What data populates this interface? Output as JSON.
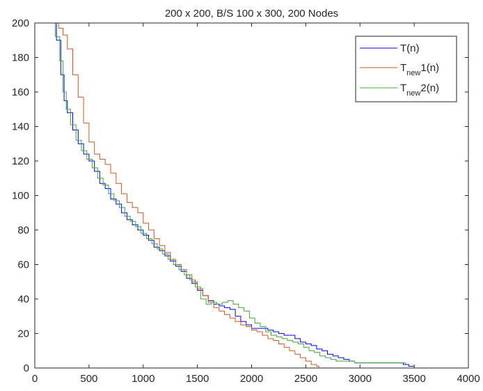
{
  "chart_data": {
    "type": "line",
    "title": "200 x 200, B/S 100 x 300, 200 Nodes",
    "xlabel": "",
    "ylabel": "",
    "xlim": [
      0,
      4000
    ],
    "ylim": [
      0,
      200
    ],
    "xticks": [
      0,
      500,
      1000,
      1500,
      2000,
      2500,
      3000,
      3500,
      4000
    ],
    "yticks": [
      0,
      20,
      40,
      60,
      80,
      100,
      120,
      140,
      160,
      180,
      200
    ],
    "grid": false,
    "legend_position": "top-right",
    "series": [
      {
        "name": "T(n)",
        "label_main": "T",
        "label_sub": "",
        "label_rest": "(n)",
        "color": "#0000ff",
        "points": [
          [
            0,
            200
          ],
          [
            160,
            200
          ],
          [
            200,
            190
          ],
          [
            240,
            170
          ],
          [
            270,
            155
          ],
          [
            300,
            148
          ],
          [
            350,
            138
          ],
          [
            400,
            130
          ],
          [
            450,
            124
          ],
          [
            500,
            120
          ],
          [
            550,
            114
          ],
          [
            600,
            107
          ],
          [
            650,
            104
          ],
          [
            700,
            98
          ],
          [
            750,
            95
          ],
          [
            800,
            90
          ],
          [
            850,
            86
          ],
          [
            900,
            83
          ],
          [
            950,
            80
          ],
          [
            1000,
            77
          ],
          [
            1050,
            74
          ],
          [
            1100,
            70
          ],
          [
            1150,
            68
          ],
          [
            1200,
            65
          ],
          [
            1250,
            62
          ],
          [
            1300,
            59
          ],
          [
            1350,
            56
          ],
          [
            1400,
            52
          ],
          [
            1450,
            49
          ],
          [
            1500,
            45
          ],
          [
            1550,
            42
          ],
          [
            1600,
            39
          ],
          [
            1650,
            37
          ],
          [
            1700,
            36
          ],
          [
            1750,
            35
          ],
          [
            1800,
            34
          ],
          [
            1850,
            30
          ],
          [
            1900,
            27
          ],
          [
            1950,
            25
          ],
          [
            2000,
            23
          ],
          [
            2050,
            23
          ],
          [
            2100,
            23
          ],
          [
            2150,
            22
          ],
          [
            2200,
            21
          ],
          [
            2250,
            20
          ],
          [
            2300,
            19
          ],
          [
            2350,
            19
          ],
          [
            2400,
            17
          ],
          [
            2450,
            15
          ],
          [
            2500,
            14
          ],
          [
            2550,
            13
          ],
          [
            2600,
            11
          ],
          [
            2650,
            10
          ],
          [
            2700,
            8
          ],
          [
            2750,
            7
          ],
          [
            2800,
            6
          ],
          [
            2850,
            5
          ],
          [
            2900,
            4
          ],
          [
            2950,
            3
          ],
          [
            3000,
            3
          ],
          [
            3100,
            3
          ],
          [
            3200,
            3
          ],
          [
            3300,
            3
          ],
          [
            3400,
            2
          ],
          [
            3450,
            1
          ],
          [
            3500,
            1
          ]
        ]
      },
      {
        "name": "Tnew1(n)",
        "label_main": "T",
        "label_sub": "new",
        "label_rest": "1(n)",
        "color": "#d95319",
        "points": [
          [
            0,
            200
          ],
          [
            170,
            200
          ],
          [
            220,
            197
          ],
          [
            260,
            193
          ],
          [
            300,
            185
          ],
          [
            350,
            170
          ],
          [
            400,
            157
          ],
          [
            450,
            142
          ],
          [
            500,
            131
          ],
          [
            550,
            124
          ],
          [
            600,
            121
          ],
          [
            650,
            118
          ],
          [
            700,
            113
          ],
          [
            750,
            107
          ],
          [
            800,
            101
          ],
          [
            850,
            96
          ],
          [
            900,
            93
          ],
          [
            950,
            90
          ],
          [
            1000,
            84
          ],
          [
            1050,
            80
          ],
          [
            1100,
            75
          ],
          [
            1150,
            71
          ],
          [
            1200,
            67
          ],
          [
            1250,
            63
          ],
          [
            1300,
            60
          ],
          [
            1350,
            57
          ],
          [
            1400,
            54
          ],
          [
            1450,
            50
          ],
          [
            1500,
            46
          ],
          [
            1550,
            42
          ],
          [
            1600,
            38
          ],
          [
            1650,
            35
          ],
          [
            1700,
            33
          ],
          [
            1750,
            31
          ],
          [
            1800,
            29
          ],
          [
            1850,
            27
          ],
          [
            1900,
            25
          ],
          [
            1950,
            24
          ],
          [
            2000,
            22
          ],
          [
            2050,
            21
          ],
          [
            2100,
            19
          ],
          [
            2150,
            17
          ],
          [
            2200,
            16
          ],
          [
            2250,
            14
          ],
          [
            2300,
            12
          ],
          [
            2350,
            10
          ],
          [
            2400,
            8
          ],
          [
            2450,
            6
          ],
          [
            2500,
            4
          ],
          [
            2550,
            2
          ],
          [
            2600,
            1
          ],
          [
            2620,
            0
          ]
        ]
      },
      {
        "name": "Tnew2(n)",
        "label_main": "T",
        "label_sub": "new",
        "label_rest": "2(n)",
        "color": "#3aa935",
        "points": [
          [
            0,
            200
          ],
          [
            150,
            200
          ],
          [
            190,
            192
          ],
          [
            230,
            178
          ],
          [
            260,
            160
          ],
          [
            290,
            150
          ],
          [
            330,
            141
          ],
          [
            380,
            132
          ],
          [
            430,
            126
          ],
          [
            480,
            121
          ],
          [
            530,
            116
          ],
          [
            580,
            110
          ],
          [
            630,
            106
          ],
          [
            680,
            101
          ],
          [
            730,
            97
          ],
          [
            780,
            93
          ],
          [
            830,
            88
          ],
          [
            880,
            85
          ],
          [
            930,
            82
          ],
          [
            980,
            78
          ],
          [
            1030,
            75
          ],
          [
            1080,
            72
          ],
          [
            1130,
            69
          ],
          [
            1180,
            66
          ],
          [
            1230,
            63
          ],
          [
            1280,
            60
          ],
          [
            1330,
            57
          ],
          [
            1380,
            54
          ],
          [
            1430,
            51
          ],
          [
            1480,
            47
          ],
          [
            1530,
            40
          ],
          [
            1580,
            37
          ],
          [
            1630,
            38
          ],
          [
            1680,
            37
          ],
          [
            1730,
            38
          ],
          [
            1780,
            39
          ],
          [
            1830,
            37
          ],
          [
            1880,
            35
          ],
          [
            1930,
            33
          ],
          [
            1980,
            29
          ],
          [
            2030,
            26
          ],
          [
            2080,
            24
          ],
          [
            2130,
            21
          ],
          [
            2180,
            19
          ],
          [
            2230,
            18
          ],
          [
            2280,
            17
          ],
          [
            2330,
            16
          ],
          [
            2380,
            15
          ],
          [
            2430,
            14
          ],
          [
            2480,
            12
          ],
          [
            2530,
            10
          ],
          [
            2580,
            9
          ],
          [
            2630,
            7
          ],
          [
            2680,
            6
          ],
          [
            2730,
            5
          ],
          [
            2780,
            4
          ],
          [
            2830,
            4
          ],
          [
            2880,
            4
          ],
          [
            2950,
            3
          ],
          [
            3000,
            3
          ],
          [
            3100,
            3
          ],
          [
            3200,
            3
          ],
          [
            3300,
            3
          ],
          [
            3400,
            3
          ],
          [
            3420,
            2
          ]
        ]
      }
    ]
  }
}
